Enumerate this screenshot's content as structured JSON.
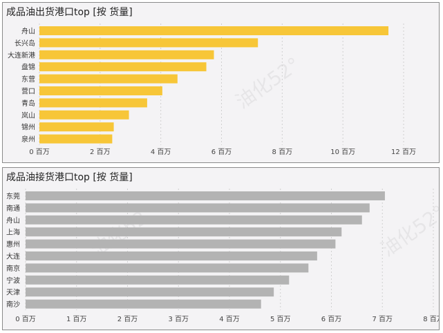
{
  "charts": [
    {
      "title": "成品油出货港口top [按 货量]",
      "watermark": "油化52°",
      "chart_data": {
        "type": "bar",
        "orientation": "horizontal",
        "categories": [
          "舟山",
          "长兴岛",
          "大连新港",
          "盘锦",
          "东营",
          "营口",
          "青岛",
          "岚山",
          "锦州",
          "泉州"
        ],
        "values": [
          11.5,
          7.2,
          5.75,
          5.5,
          4.55,
          4.05,
          3.55,
          2.95,
          2.45,
          2.4
        ],
        "unit": "百万",
        "xlim": [
          0,
          12
        ],
        "xticks": [
          0,
          2,
          4,
          6,
          8,
          10,
          12
        ],
        "tick_labels": [
          "0 百万",
          "2 百万",
          "4 百万",
          "6 百万",
          "8 百万",
          "10 百万",
          "12 百万"
        ],
        "bar_color": "#f7c638",
        "grid": true
      }
    },
    {
      "title": "成品油接货港口top [按 货量]",
      "watermark": "油化52°",
      "chart_data": {
        "type": "bar",
        "orientation": "horizontal",
        "categories": [
          "东莞",
          "南通",
          "舟山",
          "上海",
          "惠州",
          "大连",
          "南京",
          "宁波",
          "天津",
          "南沙"
        ],
        "values": [
          7.05,
          6.75,
          6.6,
          6.2,
          6.08,
          5.72,
          5.55,
          5.17,
          4.87,
          4.62
        ],
        "unit": "百万",
        "xlim": [
          0,
          8
        ],
        "xticks": [
          0,
          1,
          2,
          3,
          4,
          5,
          6,
          7,
          8
        ],
        "tick_labels": [
          "0 百万",
          "1 百万",
          "2 百万",
          "3 百万",
          "4 百万",
          "5 百万",
          "6 百万",
          "7 百万",
          "8 百万"
        ],
        "bar_color": "#b3b3b3",
        "grid": true
      }
    }
  ]
}
